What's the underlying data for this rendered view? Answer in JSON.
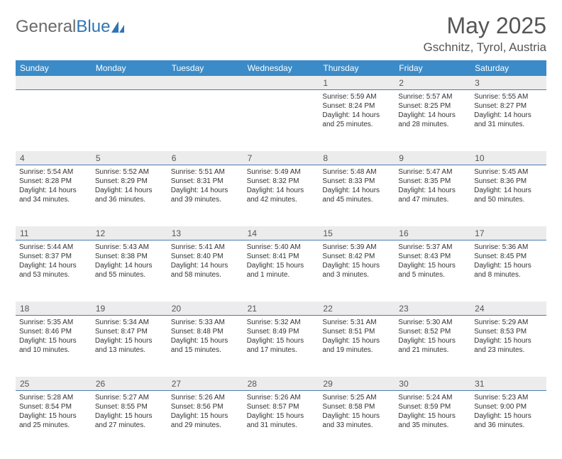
{
  "logo": {
    "text1": "General",
    "text2": "Blue"
  },
  "title": "May 2025",
  "location": "Gschnitz, Tyrol, Austria",
  "colors": {
    "header_bg": "#3b8bc8",
    "header_fg": "#ffffff",
    "daynum_bg": "#ececec",
    "rule": "#4a7db0",
    "body_fg": "#333333"
  },
  "daysOfWeek": [
    "Sunday",
    "Monday",
    "Tuesday",
    "Wednesday",
    "Thursday",
    "Friday",
    "Saturday"
  ],
  "weeks": [
    [
      {
        "n": "",
        "sr": "",
        "ss": "",
        "dl": ""
      },
      {
        "n": "",
        "sr": "",
        "ss": "",
        "dl": ""
      },
      {
        "n": "",
        "sr": "",
        "ss": "",
        "dl": ""
      },
      {
        "n": "",
        "sr": "",
        "ss": "",
        "dl": ""
      },
      {
        "n": "1",
        "sr": "Sunrise: 5:59 AM",
        "ss": "Sunset: 8:24 PM",
        "dl": "Daylight: 14 hours and 25 minutes."
      },
      {
        "n": "2",
        "sr": "Sunrise: 5:57 AM",
        "ss": "Sunset: 8:25 PM",
        "dl": "Daylight: 14 hours and 28 minutes."
      },
      {
        "n": "3",
        "sr": "Sunrise: 5:55 AM",
        "ss": "Sunset: 8:27 PM",
        "dl": "Daylight: 14 hours and 31 minutes."
      }
    ],
    [
      {
        "n": "4",
        "sr": "Sunrise: 5:54 AM",
        "ss": "Sunset: 8:28 PM",
        "dl": "Daylight: 14 hours and 34 minutes."
      },
      {
        "n": "5",
        "sr": "Sunrise: 5:52 AM",
        "ss": "Sunset: 8:29 PM",
        "dl": "Daylight: 14 hours and 36 minutes."
      },
      {
        "n": "6",
        "sr": "Sunrise: 5:51 AM",
        "ss": "Sunset: 8:31 PM",
        "dl": "Daylight: 14 hours and 39 minutes."
      },
      {
        "n": "7",
        "sr": "Sunrise: 5:49 AM",
        "ss": "Sunset: 8:32 PM",
        "dl": "Daylight: 14 hours and 42 minutes."
      },
      {
        "n": "8",
        "sr": "Sunrise: 5:48 AM",
        "ss": "Sunset: 8:33 PM",
        "dl": "Daylight: 14 hours and 45 minutes."
      },
      {
        "n": "9",
        "sr": "Sunrise: 5:47 AM",
        "ss": "Sunset: 8:35 PM",
        "dl": "Daylight: 14 hours and 47 minutes."
      },
      {
        "n": "10",
        "sr": "Sunrise: 5:45 AM",
        "ss": "Sunset: 8:36 PM",
        "dl": "Daylight: 14 hours and 50 minutes."
      }
    ],
    [
      {
        "n": "11",
        "sr": "Sunrise: 5:44 AM",
        "ss": "Sunset: 8:37 PM",
        "dl": "Daylight: 14 hours and 53 minutes."
      },
      {
        "n": "12",
        "sr": "Sunrise: 5:43 AM",
        "ss": "Sunset: 8:38 PM",
        "dl": "Daylight: 14 hours and 55 minutes."
      },
      {
        "n": "13",
        "sr": "Sunrise: 5:41 AM",
        "ss": "Sunset: 8:40 PM",
        "dl": "Daylight: 14 hours and 58 minutes."
      },
      {
        "n": "14",
        "sr": "Sunrise: 5:40 AM",
        "ss": "Sunset: 8:41 PM",
        "dl": "Daylight: 15 hours and 1 minute."
      },
      {
        "n": "15",
        "sr": "Sunrise: 5:39 AM",
        "ss": "Sunset: 8:42 PM",
        "dl": "Daylight: 15 hours and 3 minutes."
      },
      {
        "n": "16",
        "sr": "Sunrise: 5:37 AM",
        "ss": "Sunset: 8:43 PM",
        "dl": "Daylight: 15 hours and 5 minutes."
      },
      {
        "n": "17",
        "sr": "Sunrise: 5:36 AM",
        "ss": "Sunset: 8:45 PM",
        "dl": "Daylight: 15 hours and 8 minutes."
      }
    ],
    [
      {
        "n": "18",
        "sr": "Sunrise: 5:35 AM",
        "ss": "Sunset: 8:46 PM",
        "dl": "Daylight: 15 hours and 10 minutes."
      },
      {
        "n": "19",
        "sr": "Sunrise: 5:34 AM",
        "ss": "Sunset: 8:47 PM",
        "dl": "Daylight: 15 hours and 13 minutes."
      },
      {
        "n": "20",
        "sr": "Sunrise: 5:33 AM",
        "ss": "Sunset: 8:48 PM",
        "dl": "Daylight: 15 hours and 15 minutes."
      },
      {
        "n": "21",
        "sr": "Sunrise: 5:32 AM",
        "ss": "Sunset: 8:49 PM",
        "dl": "Daylight: 15 hours and 17 minutes."
      },
      {
        "n": "22",
        "sr": "Sunrise: 5:31 AM",
        "ss": "Sunset: 8:51 PM",
        "dl": "Daylight: 15 hours and 19 minutes."
      },
      {
        "n": "23",
        "sr": "Sunrise: 5:30 AM",
        "ss": "Sunset: 8:52 PM",
        "dl": "Daylight: 15 hours and 21 minutes."
      },
      {
        "n": "24",
        "sr": "Sunrise: 5:29 AM",
        "ss": "Sunset: 8:53 PM",
        "dl": "Daylight: 15 hours and 23 minutes."
      }
    ],
    [
      {
        "n": "25",
        "sr": "Sunrise: 5:28 AM",
        "ss": "Sunset: 8:54 PM",
        "dl": "Daylight: 15 hours and 25 minutes."
      },
      {
        "n": "26",
        "sr": "Sunrise: 5:27 AM",
        "ss": "Sunset: 8:55 PM",
        "dl": "Daylight: 15 hours and 27 minutes."
      },
      {
        "n": "27",
        "sr": "Sunrise: 5:26 AM",
        "ss": "Sunset: 8:56 PM",
        "dl": "Daylight: 15 hours and 29 minutes."
      },
      {
        "n": "28",
        "sr": "Sunrise: 5:26 AM",
        "ss": "Sunset: 8:57 PM",
        "dl": "Daylight: 15 hours and 31 minutes."
      },
      {
        "n": "29",
        "sr": "Sunrise: 5:25 AM",
        "ss": "Sunset: 8:58 PM",
        "dl": "Daylight: 15 hours and 33 minutes."
      },
      {
        "n": "30",
        "sr": "Sunrise: 5:24 AM",
        "ss": "Sunset: 8:59 PM",
        "dl": "Daylight: 15 hours and 35 minutes."
      },
      {
        "n": "31",
        "sr": "Sunrise: 5:23 AM",
        "ss": "Sunset: 9:00 PM",
        "dl": "Daylight: 15 hours and 36 minutes."
      }
    ]
  ]
}
